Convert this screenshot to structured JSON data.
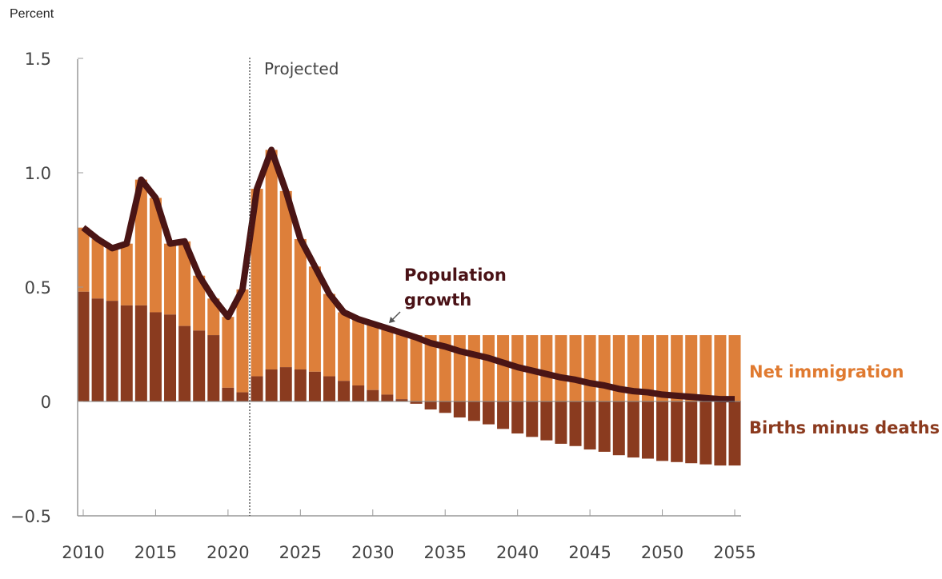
{
  "chart_data": {
    "type": "bar",
    "stacked": true,
    "ylabel": "Percent",
    "ylim": [
      -0.5,
      1.5
    ],
    "yticks": [
      "1.5",
      "1.0",
      "0.5",
      "0",
      "−0.5"
    ],
    "ytick_values": [
      1.5,
      1.0,
      0.5,
      0,
      -0.5
    ],
    "xticks": [
      "2010",
      "2015",
      "2020",
      "2025",
      "2030",
      "2035",
      "2040",
      "2045",
      "2050",
      "2055"
    ],
    "xlim": [
      2010,
      2055
    ],
    "projected_label": "Projected",
    "projected_start": 2021.5,
    "grid": false,
    "x": [
      2010,
      2011,
      2012,
      2013,
      2014,
      2015,
      2016,
      2017,
      2018,
      2019,
      2020,
      2021,
      2022,
      2023,
      2024,
      2025,
      2026,
      2027,
      2028,
      2029,
      2030,
      2031,
      2032,
      2033,
      2034,
      2035,
      2036,
      2037,
      2038,
      2039,
      2040,
      2041,
      2042,
      2043,
      2044,
      2045,
      2046,
      2047,
      2048,
      2049,
      2050,
      2051,
      2052,
      2053,
      2054,
      2055
    ],
    "series": [
      {
        "name": "Births minus deaths",
        "color": "#8a3b1f",
        "type": "bar",
        "values": [
          0.48,
          0.45,
          0.44,
          0.42,
          0.42,
          0.39,
          0.38,
          0.33,
          0.31,
          0.29,
          0.06,
          0.04,
          0.11,
          0.14,
          0.15,
          0.14,
          0.13,
          0.11,
          0.09,
          0.07,
          0.05,
          0.03,
          0.01,
          -0.01,
          -0.035,
          -0.05,
          -0.07,
          -0.085,
          -0.1,
          -0.12,
          -0.14,
          -0.155,
          -0.17,
          -0.185,
          -0.195,
          -0.21,
          -0.22,
          -0.235,
          -0.245,
          -0.25,
          -0.26,
          -0.265,
          -0.27,
          -0.275,
          -0.28,
          -0.28
        ]
      },
      {
        "name": "Net immigration",
        "color": "#dd7f3a",
        "type": "bar",
        "values": [
          0.28,
          0.26,
          0.23,
          0.27,
          0.55,
          0.5,
          0.31,
          0.37,
          0.24,
          0.16,
          0.31,
          0.45,
          0.82,
          0.96,
          0.77,
          0.57,
          0.46,
          0.36,
          0.3,
          0.29,
          0.29,
          0.29,
          0.29,
          0.29,
          0.29,
          0.29,
          0.29,
          0.29,
          0.29,
          0.29,
          0.29,
          0.29,
          0.29,
          0.29,
          0.29,
          0.29,
          0.29,
          0.29,
          0.29,
          0.29,
          0.29,
          0.29,
          0.29,
          0.29,
          0.29,
          0.29
        ]
      },
      {
        "name": "Population growth",
        "color": "#4a1515",
        "type": "line",
        "values": [
          0.76,
          0.71,
          0.67,
          0.69,
          0.97,
          0.89,
          0.69,
          0.7,
          0.55,
          0.45,
          0.37,
          0.49,
          0.93,
          1.1,
          0.92,
          0.71,
          0.59,
          0.47,
          0.39,
          0.36,
          0.34,
          0.32,
          0.3,
          0.28,
          0.255,
          0.24,
          0.22,
          0.205,
          0.19,
          0.17,
          0.15,
          0.135,
          0.12,
          0.105,
          0.095,
          0.08,
          0.07,
          0.055,
          0.045,
          0.04,
          0.03,
          0.025,
          0.02,
          0.015,
          0.01,
          0.01
        ]
      }
    ],
    "annotations": {
      "population_growth_line1": "Population",
      "population_growth_line2": "growth",
      "net_immigration": "Net immigration",
      "births_minus_deaths": "Births minus deaths"
    }
  }
}
